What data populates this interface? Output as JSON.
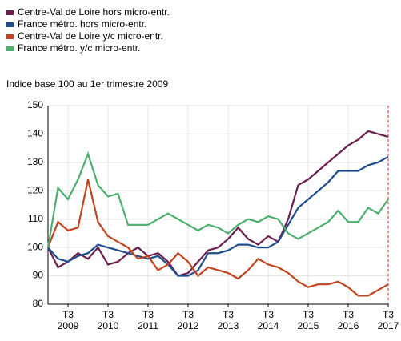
{
  "chart_data": {
    "type": "line",
    "subtitle": "Indice base 100 au 1er trimestre 2009",
    "categories": [
      null,
      null,
      "T3 2009",
      null,
      null,
      null,
      "T3 2010",
      null,
      null,
      null,
      "T3 2011",
      null,
      null,
      null,
      "T3 2012",
      null,
      null,
      null,
      "T3 2013",
      null,
      null,
      null,
      "T3 2014",
      null,
      null,
      null,
      "T3 2015",
      null,
      null,
      null,
      "T3 2016",
      null,
      null,
      null,
      "T3 2017"
    ],
    "series": [
      {
        "name": "Centre-Val de Loire hors micro-entr.",
        "color": "#6b1f4f",
        "values": [
          100,
          93,
          95,
          98,
          96,
          100,
          94,
          95,
          98,
          100,
          97,
          98,
          95,
          90,
          91,
          95,
          99,
          100,
          103,
          107,
          103,
          101,
          104,
          102,
          110,
          122,
          124,
          127,
          130,
          133,
          136,
          138,
          141,
          140,
          139
        ]
      },
      {
        "name": "France métro. hors micro-entr.",
        "color": "#1f4e8c",
        "values": [
          100,
          96,
          95,
          97,
          98,
          101,
          100,
          99,
          98,
          97,
          96,
          97,
          94,
          90,
          90,
          92,
          98,
          98,
          99,
          101,
          101,
          100,
          100,
          102,
          108,
          114,
          117,
          120,
          123,
          127,
          127,
          127,
          129,
          130,
          132
        ]
      },
      {
        "name": "Centre-Val de Loire y/c micro-entr.",
        "color": "#c0441e",
        "values": [
          100,
          109,
          106,
          107,
          124,
          109,
          104,
          102,
          100,
          96,
          97,
          92,
          94,
          98,
          95,
          90,
          93,
          92,
          91,
          89,
          92,
          96,
          94,
          93,
          91,
          88,
          86,
          87,
          87,
          88,
          86,
          83,
          83,
          85,
          87
        ]
      },
      {
        "name": "France métro. y/c micro-entr.",
        "color": "#4caf6e",
        "values": [
          100,
          121,
          117,
          124,
          133,
          122,
          118,
          119,
          108,
          108,
          108,
          110,
          112,
          110,
          108,
          106,
          108,
          107,
          105,
          108,
          110,
          109,
          111,
          110,
          105,
          103,
          105,
          107,
          109,
          113,
          109,
          109,
          114,
          112,
          117
        ]
      }
    ],
    "ylim": [
      80,
      150
    ],
    "yticks": [
      80,
      90,
      100,
      110,
      120,
      130,
      140,
      150
    ],
    "grid": true
  }
}
